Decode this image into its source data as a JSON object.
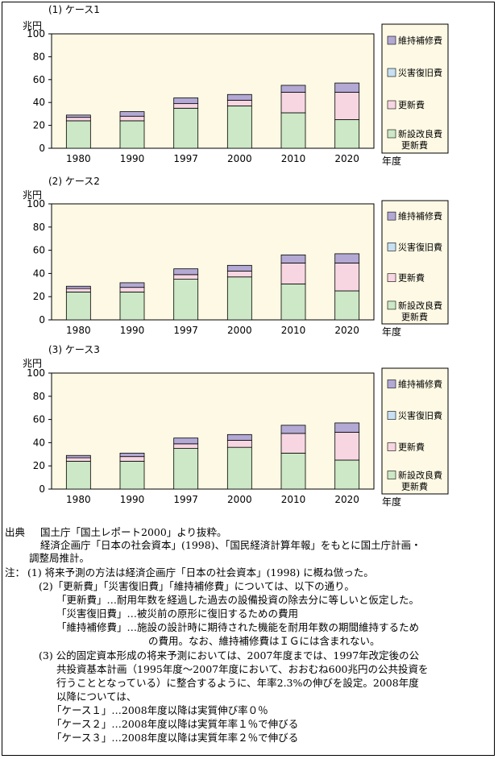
{
  "chart_data": [
    {
      "type": "bar",
      "stacked": true,
      "title": "(1) ケース1",
      "ylabel": "兆円",
      "xlabel": "年度",
      "ylim": [
        0,
        100
      ],
      "yticks": [
        "0",
        "20",
        "40",
        "60",
        "80",
        "100"
      ],
      "categories": [
        "1980",
        "1990",
        "1997",
        "2000",
        "2010",
        "2020"
      ],
      "series": [
        {
          "name": "新設改良費\n更新費",
          "values": [
            24,
            24,
            35,
            37,
            31,
            25
          ]
        },
        {
          "name": "更新費",
          "values": [
            3,
            4,
            4,
            5,
            18,
            24
          ]
        },
        {
          "name": "災害復旧費",
          "values": [
            0,
            0,
            0,
            0,
            0,
            0
          ]
        },
        {
          "name": "維持補修費",
          "values": [
            2,
            4,
            5,
            5,
            6,
            8
          ]
        }
      ],
      "legend": [
        "維持補修費",
        "災害復旧費",
        "更新費",
        "新設改良費\n更新費"
      ]
    },
    {
      "type": "bar",
      "stacked": true,
      "title": "(2) ケース2",
      "ylabel": "兆円",
      "xlabel": "年度",
      "ylim": [
        0,
        100
      ],
      "yticks": [
        "0",
        "20",
        "40",
        "60",
        "80",
        "100"
      ],
      "categories": [
        "1980",
        "1990",
        "1997",
        "2000",
        "2010",
        "2020"
      ],
      "series": [
        {
          "name": "新設改良費\n更新費",
          "values": [
            24,
            24,
            35,
            37,
            31,
            25
          ]
        },
        {
          "name": "更新費",
          "values": [
            3,
            4,
            4,
            5,
            18,
            24
          ]
        },
        {
          "name": "災害復旧費",
          "values": [
            0,
            0,
            0,
            0,
            0,
            0
          ]
        },
        {
          "name": "維持補修費",
          "values": [
            2,
            4,
            5,
            5,
            7,
            8
          ]
        }
      ],
      "legend": [
        "維持補修費",
        "災害復旧費",
        "更新費",
        "新設改良費\n更新費"
      ]
    },
    {
      "type": "bar",
      "stacked": true,
      "title": "(3) ケース3",
      "ylabel": "兆円",
      "xlabel": "年度",
      "ylim": [
        0,
        100
      ],
      "yticks": [
        "0",
        "20",
        "40",
        "60",
        "80",
        "100"
      ],
      "categories": [
        "1980",
        "1990",
        "1997",
        "2000",
        "2010",
        "2020"
      ],
      "series": [
        {
          "name": "新設改良費\n更新費",
          "values": [
            24,
            24,
            35,
            36,
            31,
            25
          ]
        },
        {
          "name": "更新費",
          "values": [
            3,
            4,
            4,
            6,
            17,
            24
          ]
        },
        {
          "name": "災害復旧費",
          "values": [
            0,
            0,
            0,
            0,
            0,
            0
          ]
        },
        {
          "name": "維持補修費",
          "values": [
            2,
            3,
            5,
            5,
            7,
            8
          ]
        }
      ],
      "legend": [
        "維持補修費",
        "災害復旧費",
        "更新費",
        "新設改良費\n更新費"
      ]
    }
  ],
  "colors": {
    "新設改良費\n更新費": "#cce8c6",
    "更新費": "#f7d6e2",
    "災害復旧費": "#c8e0f2",
    "維持補修費": "#b3a9d4",
    "plot_bg": "#fdf9e4",
    "legend_bg": "#fdf9e4"
  },
  "notes": {
    "source_label": "出典",
    "source_1": "国土庁「国土レポート2000」より抜粋。",
    "source_2": "経済企画庁「日本の社会資本」(1998)、「国民経済計算年報」をもとに国土庁計画・",
    "source_3": "調整局推計。",
    "note_label": "注：",
    "n1": "(1)  将来予測の方法は経済企画庁「日本の社会資本」(1998) に概ね倣った。",
    "n2": "(2)「更新費」「災害復旧費」「維持補修費」については、以下の通り。",
    "n2a": "「更新費」…耐用年数を経過した過去の設備投資の除去分に等しいと仮定した。",
    "n2b": "「災害復旧費」…被災前の原形に復旧するための費用",
    "n2c": "「維持補修費」…施設の設計時に期待された機能を耐用年数の期間維持するため",
    "n2d": "の費用。なお、維持補修費はＩＧには含まれない。",
    "n3": "(3)  公的固定資本形成の将来予測においては、2007年度までは、1997年改定後の公",
    "n3a": "共投資基本計画（1995年度〜2007年度において、おおむね600兆円の公共投資を",
    "n3b": "行うこととなっている）に整合するように、年率2.3%の伸びを設定。2008年度",
    "n3c": "以降については、",
    "c1": "「ケース１」…2008年度以降は実質伸び率０％",
    "c2": "「ケース２」…2008年度以降は実質年率１％で伸びる",
    "c3": "「ケース３」…2008年度以降は実質年率２％で伸びる"
  }
}
